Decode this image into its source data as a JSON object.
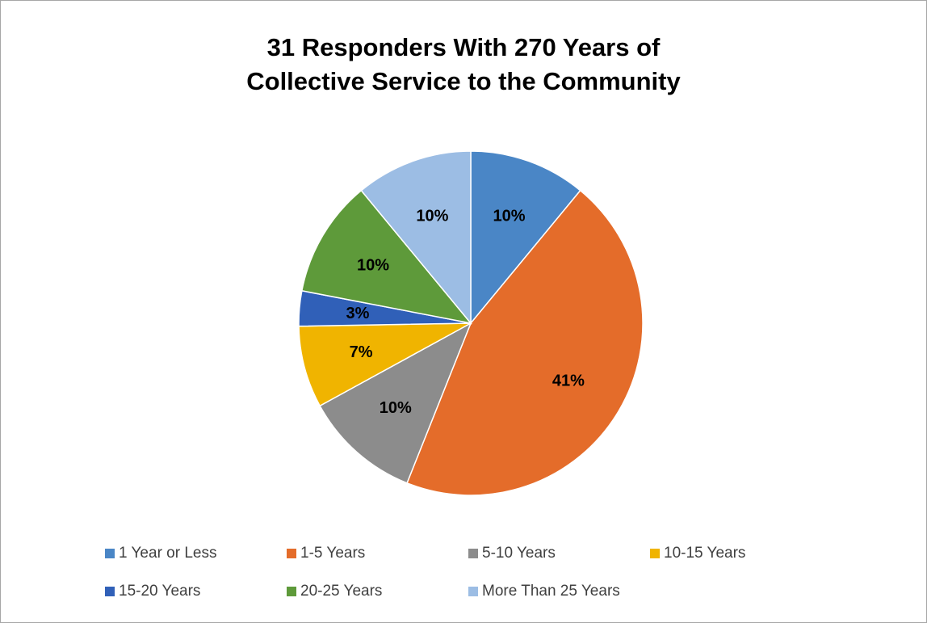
{
  "chart_data": {
    "type": "pie",
    "title_lines": [
      "31 Responders With 270 Years of",
      "Collective Service to the Community"
    ],
    "slices": [
      {
        "label": "1 Year or Less",
        "value": 10,
        "data_label": "10%",
        "color": "#4a86c6"
      },
      {
        "label": "1-5 Years",
        "value": 41,
        "data_label": "41%",
        "color": "#e46c2a"
      },
      {
        "label": "5-10 Years",
        "value": 10,
        "data_label": "10%",
        "color": "#8c8c8c"
      },
      {
        "label": "10-15 Years",
        "value": 7,
        "data_label": "7%",
        "color": "#f0b400"
      },
      {
        "label": "15-20 Years",
        "value": 3,
        "data_label": "3%",
        "color": "#3060b8"
      },
      {
        "label": "20-25 Years",
        "value": 10,
        "data_label": "10%",
        "color": "#5e9a3a"
      },
      {
        "label": "More Than 25 Years",
        "value": 10,
        "data_label": "10%",
        "color": "#9cbde4"
      }
    ],
    "legend_position": "bottom"
  }
}
